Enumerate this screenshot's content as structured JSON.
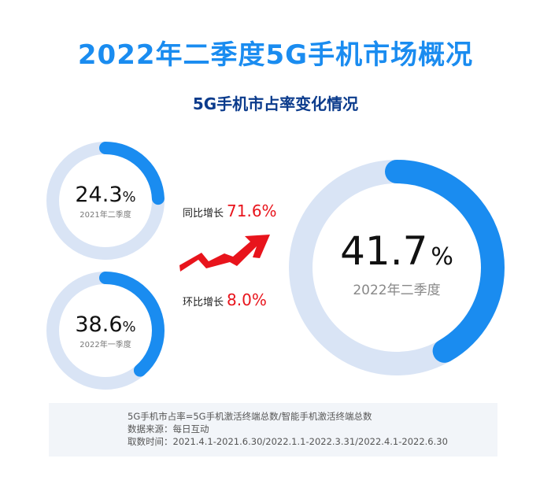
{
  "title": "2022年二季度5G手机市场概况",
  "subtitle": "5G手机市占率变化情况",
  "chart_data": {
    "type": "pie",
    "title": "5G手机市占率变化情况",
    "unit": "%",
    "items": [
      {
        "label": "2021年二季度",
        "value": 24.3,
        "value_text": "24.3"
      },
      {
        "label": "2022年一季度",
        "value": 38.6,
        "value_text": "38.6"
      },
      {
        "label": "2022年二季度",
        "value": 41.7,
        "value_text": "41.7"
      }
    ],
    "annotations": [
      {
        "label": "同比增长",
        "value": "71.6%"
      },
      {
        "label": "环比增长",
        "value": "8.0%"
      }
    ]
  },
  "colors": {
    "accent": "#1a8cf0",
    "track": "#d9e4f5",
    "growth": "#e8141c"
  },
  "footer": {
    "formula": "5G手机市占率=5G手机激活终端总数/智能手机激活终端总数",
    "source": "数据来源：每日互动",
    "period": "取数时间：2021.4.1-2021.6.30/2022.1.1-2022.3.31/2022.4.1-2022.6.30"
  }
}
